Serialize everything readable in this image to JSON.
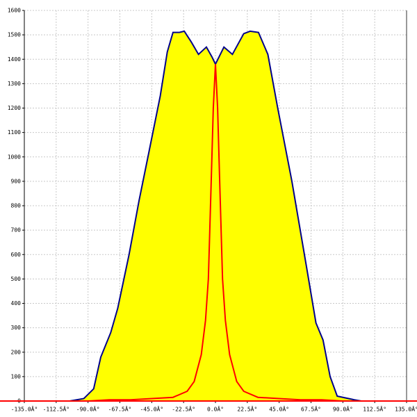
{
  "chart_data": {
    "type": "area",
    "xlim": [
      -135,
      135
    ],
    "ylim": [
      0,
      1600
    ],
    "xticks": [
      {
        "value": -135,
        "label": "-135.0Â°"
      },
      {
        "value": -112.5,
        "label": "-112.5Â°"
      },
      {
        "value": -90,
        "label": "-90.0Â°"
      },
      {
        "value": -67.5,
        "label": "-67.5Â°"
      },
      {
        "value": -45,
        "label": "-45.0Â°"
      },
      {
        "value": -22.5,
        "label": "-22.5Â°"
      },
      {
        "value": 0,
        "label": "0.0Â°"
      },
      {
        "value": 22.5,
        "label": "22.5Â°"
      },
      {
        "value": 45,
        "label": "45.0Â°"
      },
      {
        "value": 67.5,
        "label": "67.5Â°"
      },
      {
        "value": 90,
        "label": "90.0Â°"
      },
      {
        "value": 112.5,
        "label": "112.5Â°"
      },
      {
        "value": 135,
        "label": "135.0Â°"
      }
    ],
    "yticks": [
      0,
      100,
      200,
      300,
      400,
      500,
      600,
      700,
      800,
      900,
      1000,
      1100,
      1200,
      1300,
      1400,
      1500,
      1600
    ],
    "grid": true,
    "series": [
      {
        "color": "#ffff00",
        "line_color": "#00008b",
        "fill": true,
        "x": [
          -103,
          -93,
          -86,
          -81,
          -74,
          -69,
          -61,
          -54,
          -47,
          -39,
          -34,
          -30,
          -25.5,
          -22,
          -17,
          -12,
          -6.4,
          -2.5,
          0,
          6,
          12,
          20,
          24.5,
          30.4,
          37,
          44,
          54,
          64,
          71,
          76,
          81,
          86,
          98,
          103
        ],
        "values": [
          0,
          10,
          50,
          180,
          280,
          380,
          600,
          820,
          1020,
          1250,
          1430,
          1510,
          1510,
          1515,
          1470,
          1420,
          1450,
          1410,
          1380,
          1450,
          1420,
          1505,
          1515,
          1510,
          1420,
          1200,
          900,
          560,
          320,
          250,
          100,
          20,
          5,
          0
        ]
      },
      {
        "color": "#ff0000",
        "fill": false,
        "x": [
          -135,
          -90,
          -75,
          -60,
          -45,
          -30,
          -20,
          -15,
          -10,
          -7,
          -5,
          -3,
          -1.5,
          0,
          1.5,
          3,
          5,
          7,
          10,
          15,
          20,
          30,
          45,
          60,
          75,
          90,
          135
        ],
        "values": [
          0,
          0,
          5,
          5,
          10,
          15,
          40,
          80,
          190,
          330,
          500,
          900,
          1200,
          1380,
          1200,
          900,
          500,
          330,
          190,
          80,
          40,
          15,
          10,
          5,
          5,
          0,
          0
        ]
      }
    ]
  }
}
